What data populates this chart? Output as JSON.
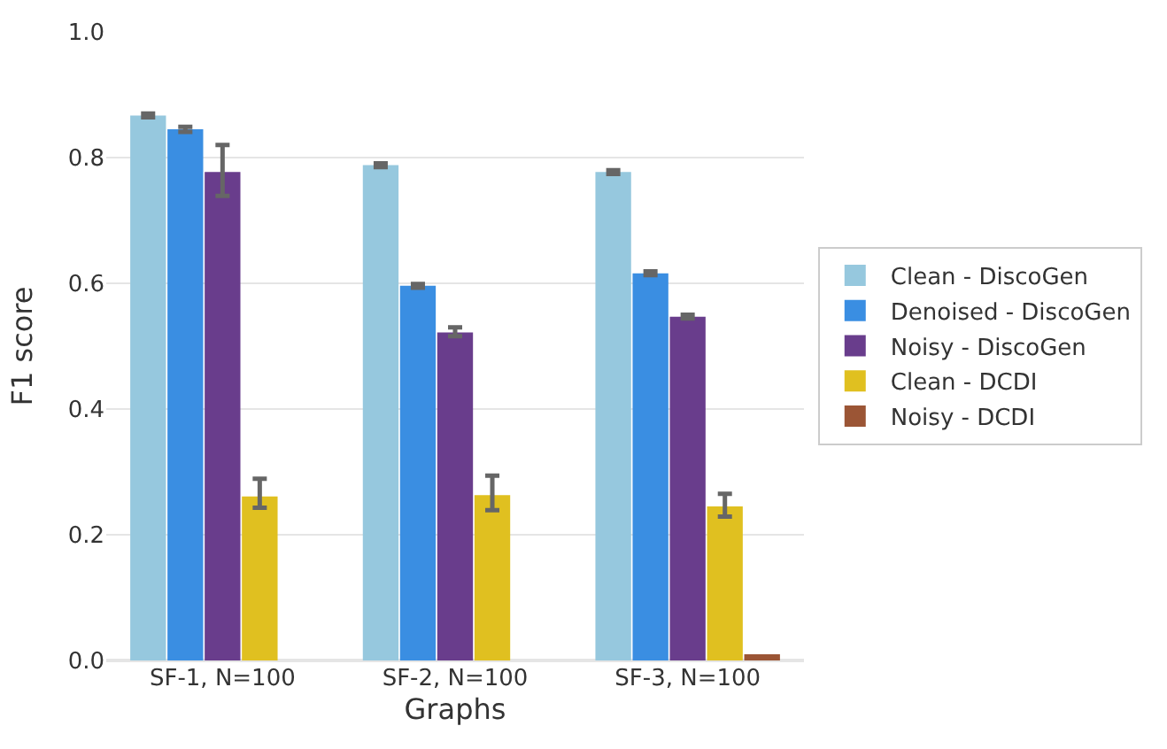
{
  "chart_data": {
    "type": "bar",
    "xlabel": "Graphs",
    "ylabel": "F1 score",
    "categories": [
      "SF-1, N=100",
      "SF-2, N=100",
      "SF-3, N=100"
    ],
    "series": [
      {
        "name": "Clean - DiscoGen",
        "color": "#96c8de",
        "values": [
          0.867,
          0.788,
          0.777
        ],
        "errors": [
          0.003,
          0.003,
          0.003
        ]
      },
      {
        "name": "Denoised - DiscoGen",
        "color": "#3a8ee2",
        "values": [
          0.845,
          0.596,
          0.616
        ],
        "errors": [
          0.004,
          0.003,
          0.003
        ]
      },
      {
        "name": "Noisy - DiscoGen",
        "color": "#693d8c",
        "values": [
          0.777,
          0.522,
          0.547
        ],
        "errors": [
          [
            0.739,
            0.82
          ],
          [
            0.516,
            0.53
          ],
          0.003
        ]
      },
      {
        "name": "Clean - DCDI",
        "color": "#e0c020",
        "values": [
          0.261,
          0.263,
          0.245
        ],
        "errors": [
          [
            0.243,
            0.289
          ],
          [
            0.239,
            0.294
          ],
          [
            0.229,
            0.265
          ]
        ]
      },
      {
        "name": "Noisy - DCDI",
        "color": "#9b5535",
        "values": [
          0.0,
          0.0,
          0.01
        ]
      }
    ],
    "ylim": [
      0,
      1.0
    ],
    "yticks": [
      {
        "value": 0,
        "label": "0.0"
      },
      0.2,
      0.4,
      0.6,
      0.8,
      {
        "value": 1,
        "label": "1.0"
      }
    ],
    "grid": "y",
    "legend": "right"
  }
}
